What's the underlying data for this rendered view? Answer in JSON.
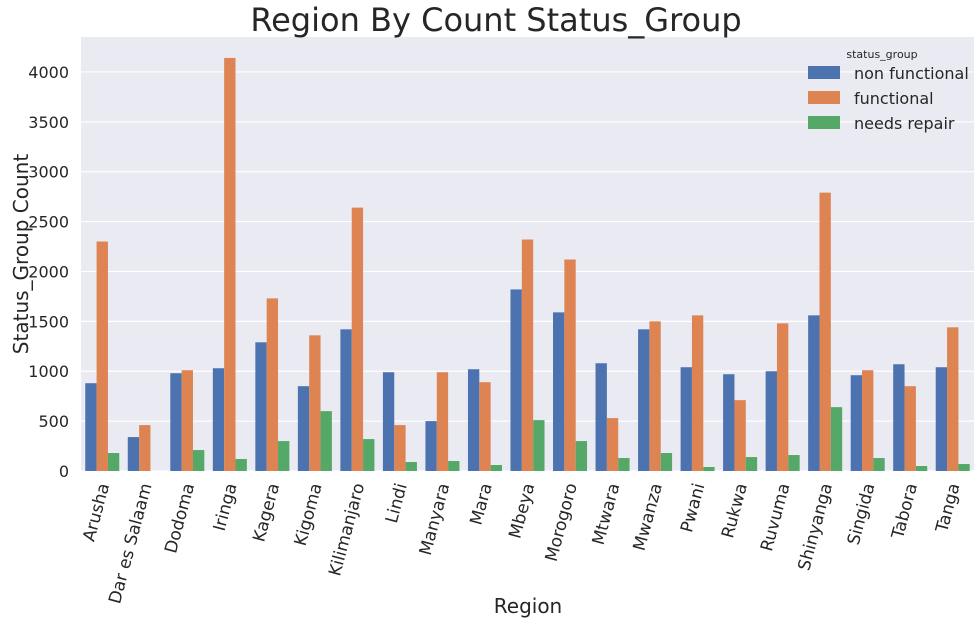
{
  "chart_data": {
    "type": "bar",
    "title": "Region By Count Status_Group",
    "xlabel": "Region",
    "ylabel": "Status_Group Count",
    "ylim": [
      0,
      4350
    ],
    "yticks": [
      0,
      500,
      1000,
      1500,
      2000,
      2500,
      3000,
      3500,
      4000
    ],
    "grid": true,
    "legend": {
      "title": "status_group",
      "position": "top-right"
    },
    "categories": [
      "Arusha",
      "Dar es Salaam",
      "Dodoma",
      "Iringa",
      "Kagera",
      "Kigoma",
      "Kilimanjaro",
      "Lindi",
      "Manyara",
      "Mara",
      "Mbeya",
      "Morogoro",
      "Mtwara",
      "Mwanza",
      "Pwani",
      "Rukwa",
      "Ruvuma",
      "Shinyanga",
      "Singida",
      "Tabora",
      "Tanga"
    ],
    "series": [
      {
        "name": "non functional",
        "color": "#4c72b0",
        "values": [
          880,
          340,
          980,
          1030,
          1290,
          850,
          1420,
          990,
          500,
          1020,
          1820,
          1590,
          1080,
          1420,
          1040,
          970,
          1000,
          1560,
          960,
          1070,
          1040
        ]
      },
      {
        "name": "functional",
        "color": "#dd8452",
        "values": [
          2300,
          460,
          1010,
          4140,
          1730,
          1360,
          2640,
          460,
          990,
          890,
          2320,
          2120,
          530,
          1500,
          1560,
          710,
          1480,
          2790,
          1010,
          850,
          1440
        ]
      },
      {
        "name": "needs repair",
        "color": "#55a868",
        "values": [
          180,
          0,
          210,
          120,
          300,
          600,
          320,
          90,
          100,
          60,
          510,
          300,
          130,
          180,
          40,
          140,
          160,
          640,
          130,
          50,
          70
        ]
      }
    ]
  }
}
